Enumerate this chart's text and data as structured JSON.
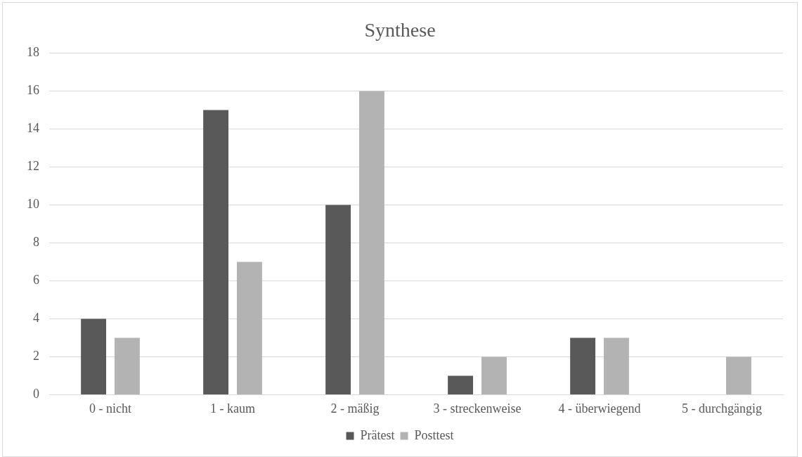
{
  "chart_data": {
    "type": "bar",
    "title": "Synthese",
    "categories": [
      "0 - nicht",
      "1 - kaum",
      "2 - mäßig",
      "3 - streckenweise",
      "4 - überwiegend",
      "5 - durchgängig"
    ],
    "series": [
      {
        "name": "Prätest",
        "color": "#595959",
        "values": [
          4,
          15,
          10,
          1,
          3,
          0
        ]
      },
      {
        "name": "Posttest",
        "color": "#b3b3b3",
        "values": [
          3,
          7,
          16,
          2,
          3,
          2
        ]
      }
    ],
    "ylim": [
      0,
      18
    ],
    "yticks": [
      0,
      2,
      4,
      6,
      8,
      10,
      12,
      14,
      16,
      18
    ],
    "grid": "y",
    "legend": "bottom"
  }
}
